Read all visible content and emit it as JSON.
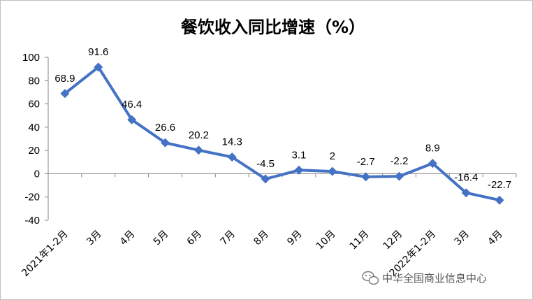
{
  "chart_data": {
    "type": "line",
    "title": "餐饮收入同比增速（%）",
    "categories": [
      "2021年1-2月",
      "3月",
      "4月",
      "5月",
      "6月",
      "7月",
      "8月",
      "9月",
      "10月",
      "11月",
      "12月",
      "2022年1-2月",
      "3月",
      "4月"
    ],
    "series": [
      {
        "values": [
          68.9,
          91.6,
          46.4,
          26.6,
          20.2,
          14.3,
          -4.5,
          3.1,
          2,
          -2.7,
          -2.2,
          8.9,
          -16.4,
          -22.7
        ]
      }
    ],
    "data_labels": [
      "68.9",
      "91.6",
      "46.4",
      "26.6",
      "20.2",
      "14.3",
      "-4.5",
      "3.1",
      "2",
      "-2.7",
      "-2.2",
      "8.9",
      "-16.4",
      "-22.7"
    ],
    "ylim": [
      -40,
      100
    ],
    "yticks": [
      -40,
      -20,
      0,
      20,
      40,
      60,
      80,
      100
    ],
    "ytick_labels": [
      "-40",
      "-20",
      "0",
      "20",
      "40",
      "60",
      "80",
      "100"
    ],
    "grid": false,
    "legend": "none",
    "series_color": "#4472C4"
  },
  "watermark": {
    "text": "中华全国商业信息中心",
    "icon": "wechat-icon"
  }
}
